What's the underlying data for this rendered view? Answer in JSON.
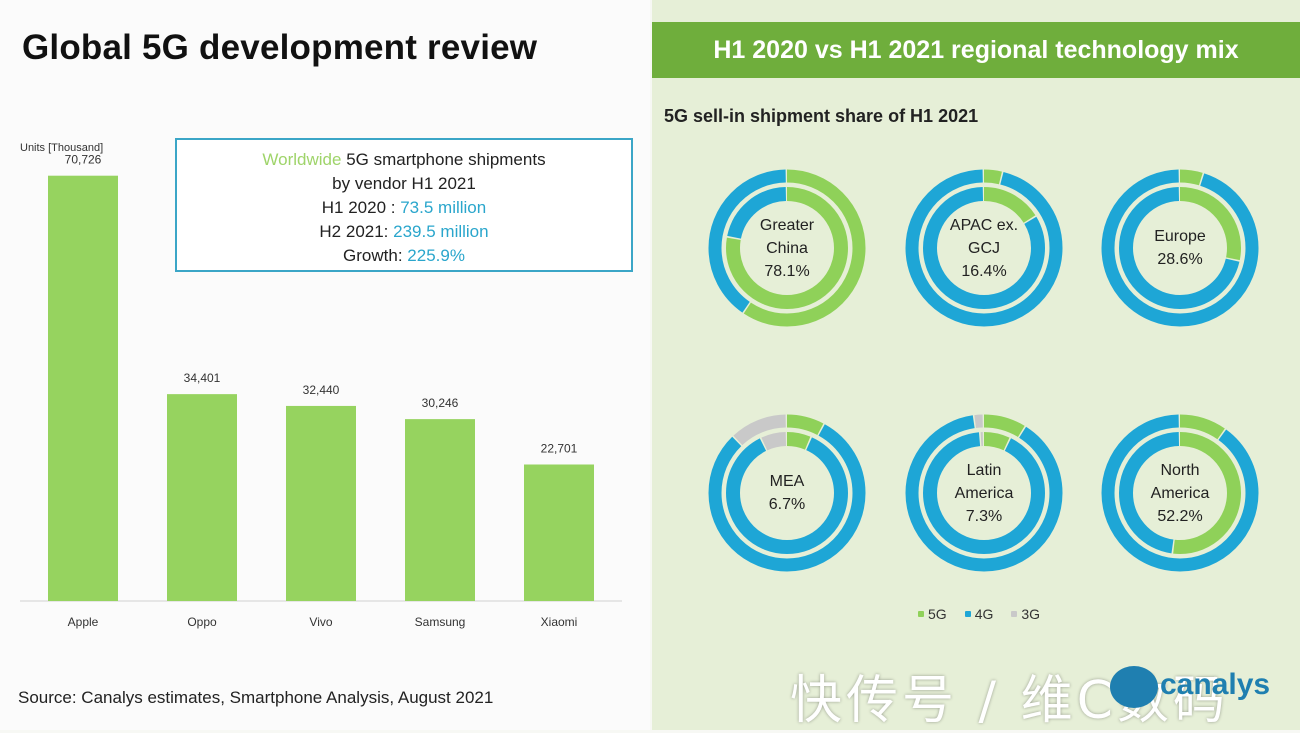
{
  "left": {
    "title": "Global 5G development review",
    "unit_label": "Units [Thousand]",
    "info_box": {
      "line1_accent": "Worldwide",
      "line1_rest": " 5G smartphone shipments",
      "line2": "by vendor H1 2021",
      "line3_label": "H1 2020 : ",
      "line3_value": "73.5 million",
      "line4_label": "H2 2021: ",
      "line4_value": "239.5 million",
      "line5_label": "Growth: ",
      "line5_value": "225.9%"
    },
    "source": "Source: Canalys estimates, Smartphone Analysis, August 2021"
  },
  "right": {
    "header": "H1 2020 vs H1 2021 regional technology mix",
    "subtitle": "5G sell-in shipment share of H1 2021",
    "legend": [
      {
        "label": "5G",
        "color": "#8fd159"
      },
      {
        "label": "4G",
        "color": "#1ea6d6"
      },
      {
        "label": "3G",
        "color": "#c9c9c9"
      }
    ]
  },
  "watermark": "快传号 / 维C数码",
  "brand_text": "canalys",
  "colors": {
    "bar_green": "#96d35f",
    "fiveg_green": "#8fd159",
    "fourg_blue": "#1ea6d6",
    "threeg_gray": "#c9c9c9",
    "accent_blue": "#3ba6c7",
    "header_green": "#6fae3c"
  },
  "chart_data": [
    {
      "type": "bar",
      "title": "",
      "xlabel": "",
      "ylabel": "Units [Thousand]",
      "categories": [
        "Apple",
        "Oppo",
        "Vivo",
        "Samsung",
        "Xiaomi"
      ],
      "values": [
        70726,
        34401,
        32440,
        30246,
        22701
      ],
      "value_labels": [
        "70,726",
        "34,401",
        "32,440",
        "30,246",
        "22,701"
      ],
      "ylim": [
        0,
        75000
      ]
    },
    {
      "type": "pie",
      "title": "5G sell-in shipment share of H1 2021",
      "series": [
        {
          "name": "Greater China",
          "label_lines": [
            "Greater",
            "China"
          ],
          "value_label": "78.1%",
          "outer": [
            59.6,
            40.4,
            0
          ],
          "inner": [
            78.1,
            21.9,
            0
          ]
        },
        {
          "name": "APAC ex. GCJ",
          "label_lines": [
            "APAC ex.",
            "GCJ"
          ],
          "value_label": "16.4%",
          "outer": [
            4,
            96,
            0
          ],
          "inner": [
            16.4,
            83.6,
            0
          ]
        },
        {
          "name": "Europe",
          "label_lines": [
            "Europe"
          ],
          "value_label": "28.6%",
          "outer": [
            5,
            95,
            0
          ],
          "inner": [
            28.6,
            71.4,
            0
          ]
        },
        {
          "name": "MEA",
          "label_lines": [
            "MEA"
          ],
          "value_label": "6.7%",
          "outer": [
            8,
            80,
            12
          ],
          "inner": [
            6.7,
            86.3,
            7
          ]
        },
        {
          "name": "Latin America",
          "label_lines": [
            "Latin",
            "America"
          ],
          "value_label": "7.3%",
          "outer": [
            9,
            89,
            2
          ],
          "inner": [
            7.3,
            91.7,
            1
          ]
        },
        {
          "name": "North America",
          "label_lines": [
            "North",
            "America"
          ],
          "value_label": "52.2%",
          "outer": [
            10,
            90,
            0
          ],
          "inner": [
            52.2,
            47.8,
            0
          ]
        }
      ],
      "ring_categories": [
        "5G",
        "4G",
        "3G"
      ],
      "legend": "bottom"
    }
  ]
}
